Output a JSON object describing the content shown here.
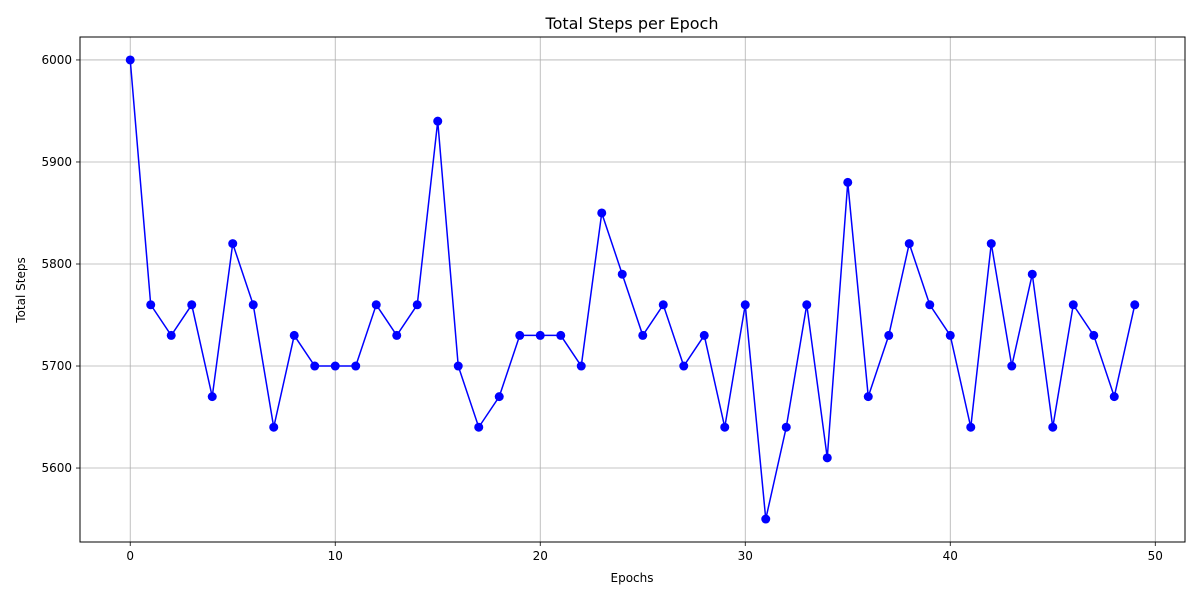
{
  "chart_data": {
    "type": "line",
    "title": "Total Steps per Epoch",
    "xlabel": "Epochs",
    "ylabel": "Total Steps",
    "xlim": [
      -2.45,
      51.45
    ],
    "ylim": [
      5527.5,
      6022.5
    ],
    "xticks": [
      0,
      10,
      20,
      30,
      40,
      50
    ],
    "yticks": [
      5600,
      5700,
      5800,
      5900,
      6000
    ],
    "grid": true,
    "color": "#0000ff",
    "marker": "circle",
    "x": [
      0,
      1,
      2,
      3,
      4,
      5,
      6,
      7,
      8,
      9,
      10,
      11,
      12,
      13,
      14,
      15,
      16,
      17,
      18,
      19,
      20,
      21,
      22,
      23,
      24,
      25,
      26,
      27,
      28,
      29,
      30,
      31,
      32,
      33,
      34,
      35,
      36,
      37,
      38,
      39,
      40,
      41,
      42,
      43,
      44,
      45,
      46,
      47,
      48,
      49
    ],
    "values": [
      6000,
      5760,
      5730,
      5760,
      5670,
      5820,
      5760,
      5640,
      5730,
      5700,
      5700,
      5700,
      5760,
      5730,
      5760,
      5940,
      5700,
      5640,
      5670,
      5730,
      5730,
      5730,
      5700,
      5850,
      5790,
      5730,
      5760,
      5700,
      5730,
      5640,
      5760,
      5550,
      5640,
      5760,
      5610,
      5880,
      5670,
      5730,
      5820,
      5760,
      5730,
      5640,
      5820,
      5700,
      5790,
      5640,
      5760,
      5730,
      5670,
      5760
    ]
  }
}
